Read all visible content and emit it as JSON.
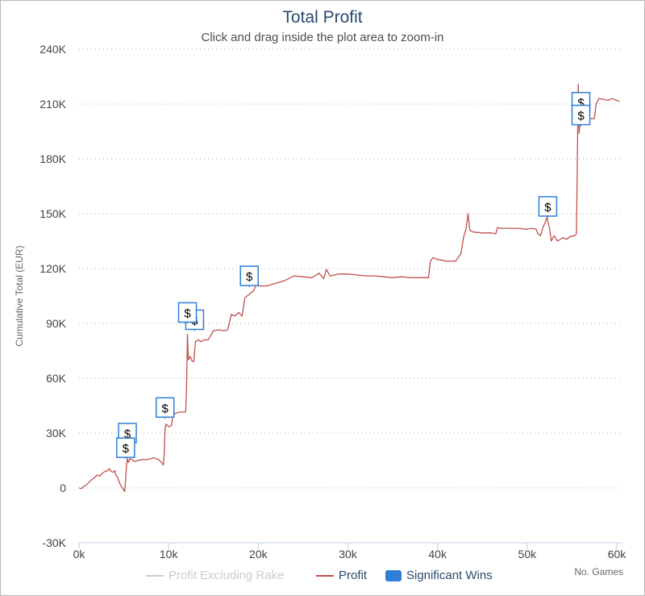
{
  "chart_data": {
    "type": "line",
    "title": "Total Profit",
    "subtitle": "Click and drag inside the plot area to zoom-in",
    "xlabel": "No. Games",
    "ylabel": "Cumulative Total (EUR)",
    "xlim": [
      0,
      60000
    ],
    "ylim": [
      -30000,
      240000
    ],
    "x_ticks": [
      0,
      10000,
      20000,
      30000,
      40000,
      50000,
      60000
    ],
    "x_tick_labels": [
      "0k",
      "10k",
      "20k",
      "30k",
      "40k",
      "50k",
      "60k"
    ],
    "y_ticks": [
      -30000,
      0,
      30000,
      60000,
      90000,
      120000,
      150000,
      180000,
      210000,
      240000
    ],
    "y_tick_labels": [
      "-30K",
      "0",
      "30K",
      "60K",
      "90K",
      "120K",
      "150K",
      "180K",
      "210K",
      "240K"
    ],
    "grid": true,
    "legend_position": "bottom",
    "legend": [
      {
        "label": "Profit Excluding Rake",
        "color": "#cccccc",
        "kind": "line",
        "disabled": true
      },
      {
        "label": "Profit",
        "color": "#c0504d",
        "kind": "line",
        "disabled": false
      },
      {
        "label": "Significant Wins",
        "color": "#2f7ed8",
        "kind": "flag",
        "disabled": false
      }
    ],
    "series": [
      {
        "name": "Profit",
        "color": "#c0504d",
        "points": [
          [
            0,
            0
          ],
          [
            300,
            -300
          ],
          [
            500,
            800
          ],
          [
            800,
            1500
          ],
          [
            1100,
            3000
          ],
          [
            1400,
            4500
          ],
          [
            1700,
            5500
          ],
          [
            2000,
            7000
          ],
          [
            2300,
            6500
          ],
          [
            2600,
            8000
          ],
          [
            2900,
            9000
          ],
          [
            3200,
            9500
          ],
          [
            3400,
            10500
          ],
          [
            3600,
            9000
          ],
          [
            3800,
            8500
          ],
          [
            4000,
            9500
          ],
          [
            4100,
            7000
          ],
          [
            4300,
            6000
          ],
          [
            4500,
            3000
          ],
          [
            4700,
            1000
          ],
          [
            4900,
            -500
          ],
          [
            5100,
            -2000
          ],
          [
            5200,
            5000
          ],
          [
            5300,
            12000
          ],
          [
            5400,
            16000
          ],
          [
            5500,
            14000
          ],
          [
            5700,
            16000
          ],
          [
            5900,
            15500
          ],
          [
            6200,
            14500
          ],
          [
            6600,
            15000
          ],
          [
            7000,
            15500
          ],
          [
            7500,
            15500
          ],
          [
            8000,
            16000
          ],
          [
            8300,
            16500
          ],
          [
            8600,
            16000
          ],
          [
            8900,
            15500
          ],
          [
            9200,
            14000
          ],
          [
            9400,
            12500
          ],
          [
            9500,
            18000
          ],
          [
            9600,
            32000
          ],
          [
            9700,
            35000
          ],
          [
            10000,
            33500
          ],
          [
            10300,
            34000
          ],
          [
            10500,
            40000
          ],
          [
            10800,
            41000
          ],
          [
            11300,
            41500
          ],
          [
            11900,
            41500
          ],
          [
            12000,
            55000
          ],
          [
            12100,
            84000
          ],
          [
            12200,
            70000
          ],
          [
            12400,
            72000
          ],
          [
            12600,
            69500
          ],
          [
            12800,
            69000
          ],
          [
            13000,
            80000
          ],
          [
            13300,
            81000
          ],
          [
            13600,
            80000
          ],
          [
            14000,
            81000
          ],
          [
            14400,
            81000
          ],
          [
            15000,
            86000
          ],
          [
            15600,
            86500
          ],
          [
            16200,
            86000
          ],
          [
            16600,
            86500
          ],
          [
            17000,
            95000
          ],
          [
            17400,
            94000
          ],
          [
            17800,
            96000
          ],
          [
            18200,
            94000
          ],
          [
            18500,
            104000
          ],
          [
            19000,
            106000
          ],
          [
            19500,
            108000
          ],
          [
            19800,
            112000
          ],
          [
            20000,
            110500
          ],
          [
            21000,
            110500
          ],
          [
            22000,
            112000
          ],
          [
            23000,
            113500
          ],
          [
            24000,
            116000
          ],
          [
            25000,
            115500
          ],
          [
            26000,
            115000
          ],
          [
            26800,
            117500
          ],
          [
            27300,
            114500
          ],
          [
            27600,
            119500
          ],
          [
            28000,
            116000
          ],
          [
            29000,
            117000
          ],
          [
            30000,
            117000
          ],
          [
            31000,
            116500
          ],
          [
            32000,
            116000
          ],
          [
            33000,
            116000
          ],
          [
            34000,
            115500
          ],
          [
            35000,
            115000
          ],
          [
            36000,
            115500
          ],
          [
            37000,
            115000
          ],
          [
            38000,
            115000
          ],
          [
            39000,
            115000
          ],
          [
            39200,
            124000
          ],
          [
            39500,
            126000
          ],
          [
            40000,
            125000
          ],
          [
            41000,
            124000
          ],
          [
            42000,
            124000
          ],
          [
            42600,
            128000
          ],
          [
            42900,
            137000
          ],
          [
            43200,
            142000
          ],
          [
            43400,
            150000
          ],
          [
            43600,
            141000
          ],
          [
            44000,
            140000
          ],
          [
            45000,
            139500
          ],
          [
            46000,
            139500
          ],
          [
            46500,
            139000
          ],
          [
            46700,
            142500
          ],
          [
            47000,
            142000
          ],
          [
            48000,
            142000
          ],
          [
            49000,
            142000
          ],
          [
            50000,
            141500
          ],
          [
            50500,
            142000
          ],
          [
            51000,
            141500
          ],
          [
            51200,
            139000
          ],
          [
            51500,
            138000
          ],
          [
            51800,
            143000
          ],
          [
            52000,
            145000
          ],
          [
            52200,
            148000
          ],
          [
            52500,
            142000
          ],
          [
            52700,
            135000
          ],
          [
            53000,
            138000
          ],
          [
            53400,
            135000
          ],
          [
            54000,
            137000
          ],
          [
            54400,
            136000
          ],
          [
            54800,
            137500
          ],
          [
            55300,
            138000
          ],
          [
            55500,
            139000
          ],
          [
            55700,
            221000
          ],
          [
            55800,
            194000
          ],
          [
            55900,
            201000
          ],
          [
            56000,
            205000
          ],
          [
            56300,
            204000
          ],
          [
            57000,
            202000
          ],
          [
            57500,
            202000
          ],
          [
            57700,
            210000
          ],
          [
            58000,
            213000
          ],
          [
            58500,
            212500
          ],
          [
            59000,
            212000
          ],
          [
            59500,
            213000
          ],
          [
            60000,
            212000
          ],
          [
            60300,
            211500
          ]
        ]
      }
    ],
    "flags": [
      {
        "x": 5400,
        "y": 30000,
        "text": "$"
      },
      {
        "x": 5200,
        "y": 22000,
        "text": "$"
      },
      {
        "x": 9600,
        "y": 44000,
        "text": "$"
      },
      {
        "x": 12900,
        "y": 92000,
        "text": "$"
      },
      {
        "x": 12100,
        "y": 96000,
        "text": "$"
      },
      {
        "x": 19000,
        "y": 116000,
        "text": "$"
      },
      {
        "x": 52300,
        "y": 154000,
        "text": "$"
      },
      {
        "x": 56000,
        "y": 211000,
        "text": "$"
      },
      {
        "x": 56000,
        "y": 204000,
        "text": "$"
      }
    ]
  }
}
